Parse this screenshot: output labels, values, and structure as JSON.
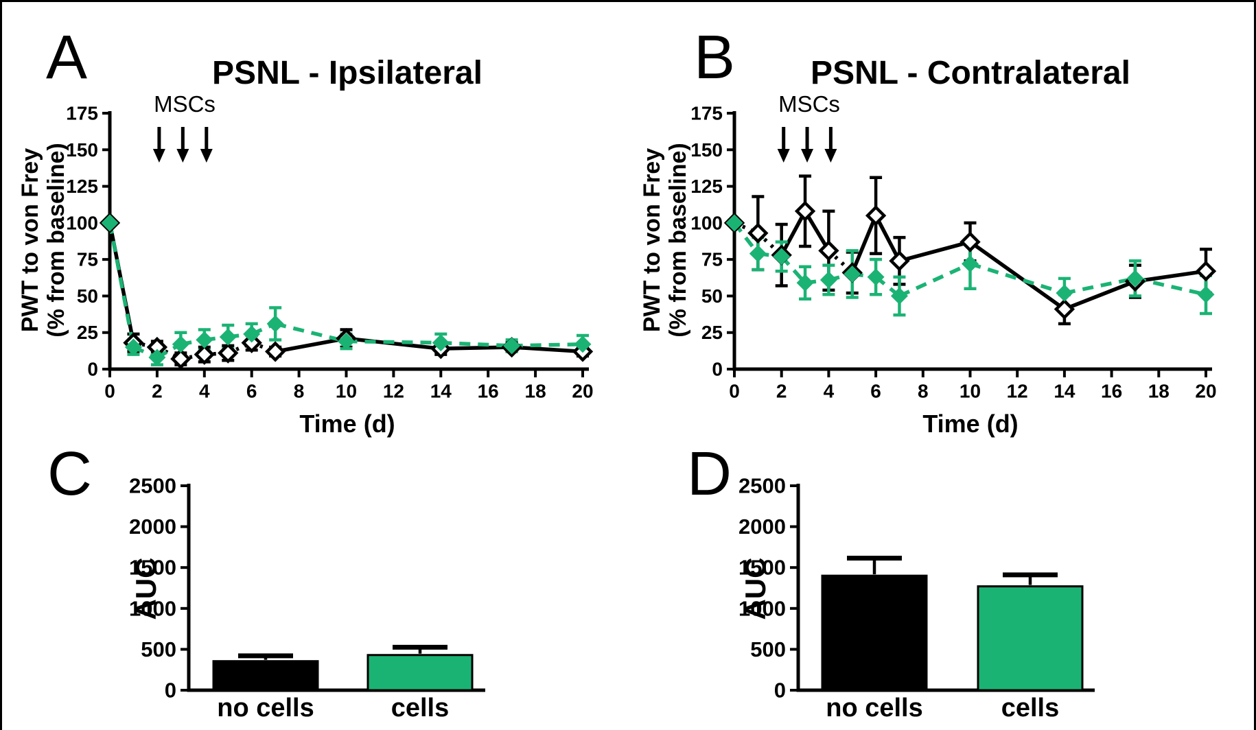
{
  "chart_data": [
    {
      "panel": "A",
      "type": "line",
      "title": "PSNL - Ipsilateral",
      "xlabel": "Time (d)",
      "ylabel": [
        "PWT to von Frey",
        "(% from baseline)"
      ],
      "annotation": {
        "label": "MSCs",
        "days": [
          2,
          3,
          4
        ]
      },
      "xlim": [
        0,
        20
      ],
      "ylim": [
        0,
        175
      ],
      "x_ticks": [
        0,
        2,
        4,
        6,
        8,
        10,
        12,
        14,
        16,
        18,
        20
      ],
      "y_ticks": [
        0,
        25,
        50,
        75,
        100,
        125,
        150,
        175
      ],
      "x": [
        0,
        1,
        2,
        3,
        4,
        5,
        6,
        7,
        10,
        14,
        17,
        20
      ],
      "series": [
        {
          "name": "no cells",
          "color": "#000000",
          "marker": "open-diamond",
          "line": "dotted-solid",
          "values": [
            100,
            18,
            15,
            7,
            10,
            11,
            18,
            12,
            21,
            14,
            15,
            12
          ],
          "sem": [
            0,
            6,
            4,
            4,
            5,
            5,
            5,
            3,
            6,
            4,
            3,
            3
          ]
        },
        {
          "name": "cells",
          "color": "#1BB374",
          "marker": "filled-diamond",
          "line": "dashed",
          "values": [
            100,
            15,
            8,
            17,
            20,
            22,
            24,
            31,
            19,
            18,
            16,
            17
          ],
          "sem": [
            0,
            5,
            5,
            8,
            7,
            8,
            7,
            11,
            5,
            6,
            4,
            6
          ]
        }
      ]
    },
    {
      "panel": "B",
      "type": "line",
      "title": "PSNL - Contralateral",
      "xlabel": "Time (d)",
      "ylabel": [
        "PWT to von Frey",
        "(% from baseline)"
      ],
      "annotation": {
        "label": "MSCs",
        "days": [
          2,
          3,
          4
        ]
      },
      "xlim": [
        0,
        20
      ],
      "ylim": [
        0,
        175
      ],
      "x_ticks": [
        0,
        2,
        4,
        6,
        8,
        10,
        12,
        14,
        16,
        18,
        20
      ],
      "y_ticks": [
        0,
        25,
        50,
        75,
        100,
        125,
        150,
        175
      ],
      "x": [
        0,
        1,
        2,
        3,
        4,
        5,
        6,
        7,
        10,
        14,
        17,
        20
      ],
      "series": [
        {
          "name": "no cells",
          "color": "#000000",
          "marker": "open-diamond",
          "line": "dotted-solid",
          "values": [
            100,
            93,
            78,
            108,
            81,
            66,
            105,
            74,
            87,
            41,
            60,
            67
          ],
          "sem": [
            0,
            25,
            21,
            24,
            27,
            14,
            26,
            16,
            13,
            10,
            11,
            15
          ]
        },
        {
          "name": "cells",
          "color": "#1BB374",
          "marker": "filled-diamond",
          "line": "dashed",
          "values": [
            100,
            79,
            77,
            59,
            61,
            65,
            63,
            50,
            72,
            52,
            62,
            51
          ],
          "sem": [
            0,
            11,
            10,
            11,
            10,
            16,
            12,
            13,
            17,
            10,
            12,
            13
          ]
        }
      ]
    },
    {
      "panel": "C",
      "type": "bar",
      "ylabel": "AUC",
      "categories": [
        "no cells",
        "cells"
      ],
      "values": [
        355,
        430
      ],
      "sem": [
        65,
        95
      ],
      "colors": [
        "#000000",
        "#1BB374"
      ],
      "y_ticks": [
        0,
        500,
        1000,
        1500,
        2000,
        2500
      ],
      "ylim": [
        0,
        2500
      ]
    },
    {
      "panel": "D",
      "type": "bar",
      "ylabel": "AUC",
      "categories": [
        "no cells",
        "cells"
      ],
      "values": [
        1400,
        1270
      ],
      "sem": [
        215,
        140
      ],
      "colors": [
        "#000000",
        "#1BB374"
      ],
      "y_ticks": [
        0,
        500,
        1000,
        1500,
        2000,
        2500
      ],
      "ylim": [
        0,
        2500
      ]
    }
  ],
  "colors": {
    "cells_green": "#1BB374",
    "no_cells_black": "#000000"
  }
}
